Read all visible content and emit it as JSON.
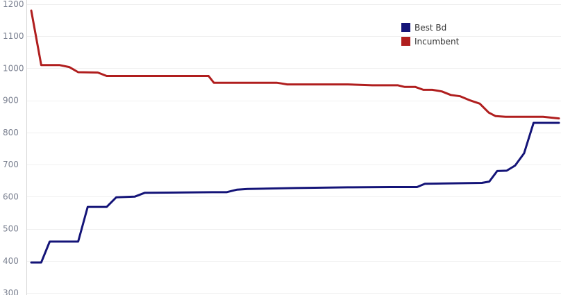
{
  "chart_data": {
    "type": "line",
    "title": "",
    "xlabel": "",
    "ylabel": "",
    "ylim": [
      300,
      1200
    ],
    "yticks": [
      1200,
      1100,
      1000,
      900,
      800,
      700,
      600,
      500,
      400,
      300
    ],
    "grid": true,
    "legend_position": "top-right",
    "x_note": "x is iteration index (no axis labels shown)",
    "xlim": [
      0,
      100
    ],
    "series": [
      {
        "name": "Best Bd",
        "color": "#141478",
        "points": [
          [
            0,
            395
          ],
          [
            1.9,
            395
          ],
          [
            3.5,
            460
          ],
          [
            8.9,
            460
          ],
          [
            10.7,
            568
          ],
          [
            14.3,
            568
          ],
          [
            16.1,
            598
          ],
          [
            19.6,
            600
          ],
          [
            21.5,
            612
          ],
          [
            34.3,
            614
          ],
          [
            37.0,
            614
          ],
          [
            39.0,
            622
          ],
          [
            41.0,
            624
          ],
          [
            50.0,
            627
          ],
          [
            60.0,
            629
          ],
          [
            68.0,
            630
          ],
          [
            73.1,
            630
          ],
          [
            74.6,
            640
          ],
          [
            85.4,
            643
          ],
          [
            86.8,
            647
          ],
          [
            88.3,
            680
          ],
          [
            90.1,
            681
          ],
          [
            91.7,
            697
          ],
          [
            93.4,
            735
          ],
          [
            95.2,
            830
          ],
          [
            100,
            830
          ]
        ]
      },
      {
        "name": "Incumbent",
        "color": "#b01e1e",
        "points": [
          [
            0,
            1180
          ],
          [
            1.9,
            1010
          ],
          [
            5.4,
            1010
          ],
          [
            7.2,
            1004
          ],
          [
            8.9,
            988
          ],
          [
            12.6,
            987
          ],
          [
            14.3,
            976
          ],
          [
            32.5,
            976
          ],
          [
            33.6,
            976
          ],
          [
            34.6,
            955
          ],
          [
            46.5,
            955
          ],
          [
            47.4,
            953
          ],
          [
            48.5,
            950
          ],
          [
            53.8,
            950
          ],
          [
            60.0,
            950
          ],
          [
            64.6,
            947
          ],
          [
            69.5,
            947
          ],
          [
            70.8,
            942
          ],
          [
            72.8,
            942
          ],
          [
            74.3,
            933
          ],
          [
            76.0,
            933
          ],
          [
            77.8,
            928
          ],
          [
            79.5,
            917
          ],
          [
            81.3,
            913
          ],
          [
            83.2,
            900
          ],
          [
            85.0,
            890
          ],
          [
            86.7,
            862
          ],
          [
            88.0,
            851
          ],
          [
            89.9,
            849
          ],
          [
            97.0,
            849
          ],
          [
            100,
            844
          ]
        ]
      }
    ]
  }
}
